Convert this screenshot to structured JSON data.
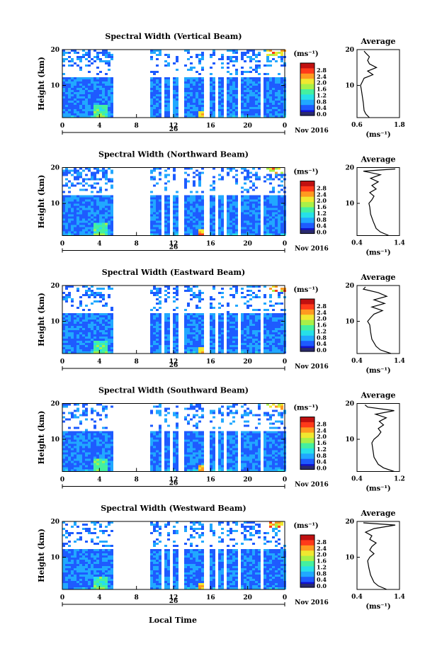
{
  "shared": {
    "ylabel": "Height (km)",
    "unit": "(ms⁻¹)",
    "avg_title": "Average",
    "day_label": "26",
    "month_label": "Nov 2016",
    "xlabel": "Local Time",
    "colorbar_ticks": [
      "2.8",
      "2.4",
      "2.0",
      "1.6",
      "1.2",
      "0.8",
      "0.4",
      "0.0"
    ]
  },
  "chart_data": [
    {
      "type": "heatmap",
      "title": "Spectral Width (Vertical Beam)",
      "x_ticks": [
        "0",
        "4",
        "8",
        "12",
        "16",
        "20",
        "0"
      ],
      "y_ticks": [
        "20",
        "10"
      ],
      "xlim": [
        0,
        24
      ],
      "ylim": [
        1,
        20
      ],
      "avg_xticks": [
        "0.6",
        "1.8"
      ],
      "avg_xlim": [
        0.6,
        1.8
      ],
      "average_profile": [
        [
          0.95,
          1
        ],
        [
          0.85,
          2
        ],
        [
          0.8,
          3
        ],
        [
          0.78,
          5
        ],
        [
          0.75,
          7
        ],
        [
          0.72,
          9
        ],
        [
          0.7,
          10
        ],
        [
          0.75,
          11
        ],
        [
          0.8,
          12
        ],
        [
          1.05,
          13
        ],
        [
          0.9,
          14
        ],
        [
          1.15,
          15
        ],
        [
          0.95,
          16
        ],
        [
          0.9,
          17
        ],
        [
          0.95,
          18
        ],
        [
          0.85,
          19
        ],
        [
          0.8,
          19.6
        ]
      ]
    },
    {
      "type": "heatmap",
      "title": "Spectral Width (Northward Beam)",
      "x_ticks": [
        "0",
        "4",
        "8",
        "12",
        "16",
        "20",
        "0"
      ],
      "y_ticks": [
        "20",
        "10"
      ],
      "xlim": [
        0,
        24
      ],
      "ylim": [
        1,
        20
      ],
      "avg_xticks": [
        "0.4",
        "1.4"
      ],
      "avg_xlim": [
        0.4,
        1.4
      ],
      "average_profile": [
        [
          1.15,
          1
        ],
        [
          0.95,
          2
        ],
        [
          0.85,
          3
        ],
        [
          0.78,
          5
        ],
        [
          0.72,
          7
        ],
        [
          0.7,
          9
        ],
        [
          0.68,
          10
        ],
        [
          0.75,
          11
        ],
        [
          0.8,
          12
        ],
        [
          0.7,
          13
        ],
        [
          0.85,
          14
        ],
        [
          0.75,
          15
        ],
        [
          0.9,
          16
        ],
        [
          0.72,
          17
        ],
        [
          0.95,
          18
        ],
        [
          0.55,
          19
        ],
        [
          1.3,
          19.6
        ]
      ]
    },
    {
      "type": "heatmap",
      "title": "Spectral Width (Eastward Beam)",
      "x_ticks": [
        "0",
        "4",
        "8",
        "12",
        "16",
        "20",
        "0"
      ],
      "y_ticks": [
        "20",
        "10"
      ],
      "xlim": [
        0,
        24
      ],
      "ylim": [
        1,
        20
      ],
      "avg_xticks": [
        "0.4",
        "1.4"
      ],
      "avg_xlim": [
        0.4,
        1.4
      ],
      "average_profile": [
        [
          1.2,
          1
        ],
        [
          0.95,
          2
        ],
        [
          0.85,
          3
        ],
        [
          0.75,
          5
        ],
        [
          0.72,
          7
        ],
        [
          0.7,
          9
        ],
        [
          0.65,
          10
        ],
        [
          0.72,
          11
        ],
        [
          0.8,
          12
        ],
        [
          1.0,
          13
        ],
        [
          0.75,
          14
        ],
        [
          1.05,
          15
        ],
        [
          0.8,
          16
        ],
        [
          1.1,
          17
        ],
        [
          0.9,
          18
        ],
        [
          0.55,
          19
        ],
        [
          0.6,
          19.6
        ]
      ]
    },
    {
      "type": "heatmap",
      "title": "Spectral Width (Southward Beam)",
      "x_ticks": [
        "0",
        "4",
        "8",
        "12",
        "16",
        "20",
        "0"
      ],
      "y_ticks": [
        "20",
        "10"
      ],
      "xlim": [
        0,
        24
      ],
      "ylim": [
        1,
        20
      ],
      "avg_xticks": [
        "0.4",
        "1.2"
      ],
      "avg_xlim": [
        0.4,
        1.2
      ],
      "average_profile": [
        [
          1.1,
          1
        ],
        [
          0.9,
          2
        ],
        [
          0.8,
          3
        ],
        [
          0.72,
          5
        ],
        [
          0.7,
          7
        ],
        [
          0.68,
          9
        ],
        [
          0.72,
          10
        ],
        [
          0.8,
          11
        ],
        [
          0.85,
          12
        ],
        [
          0.8,
          13
        ],
        [
          0.9,
          14
        ],
        [
          0.82,
          15
        ],
        [
          0.95,
          16
        ],
        [
          0.75,
          17
        ],
        [
          1.1,
          18
        ],
        [
          0.6,
          19
        ],
        [
          0.55,
          19.6
        ]
      ]
    },
    {
      "type": "heatmap",
      "title": "Spectral Width (Westward Beam)",
      "x_ticks": [
        "0",
        "4",
        "8",
        "12",
        "16",
        "20",
        "0"
      ],
      "y_ticks": [
        "20",
        "10"
      ],
      "xlim": [
        0,
        24
      ],
      "ylim": [
        1,
        20
      ],
      "avg_xticks": [
        "0.4",
        "1.4"
      ],
      "avg_xlim": [
        0.4,
        1.4
      ],
      "average_profile": [
        [
          1.1,
          1
        ],
        [
          0.9,
          2
        ],
        [
          0.8,
          3
        ],
        [
          0.72,
          5
        ],
        [
          0.68,
          7
        ],
        [
          0.65,
          9
        ],
        [
          0.7,
          10
        ],
        [
          0.8,
          11
        ],
        [
          0.7,
          12
        ],
        [
          0.75,
          13
        ],
        [
          0.85,
          14
        ],
        [
          0.7,
          15
        ],
        [
          0.75,
          16
        ],
        [
          0.6,
          17
        ],
        [
          0.8,
          18
        ],
        [
          1.3,
          19
        ],
        [
          0.55,
          19.6
        ]
      ]
    }
  ],
  "colors": {
    "scale": [
      "#2a2a6e",
      "#1010d0",
      "#1e5bff",
      "#21a8ff",
      "#27e0e8",
      "#44f0a0",
      "#a8f048",
      "#f0e830",
      "#ff9a20",
      "#ff3a1a",
      "#c01010"
    ]
  }
}
